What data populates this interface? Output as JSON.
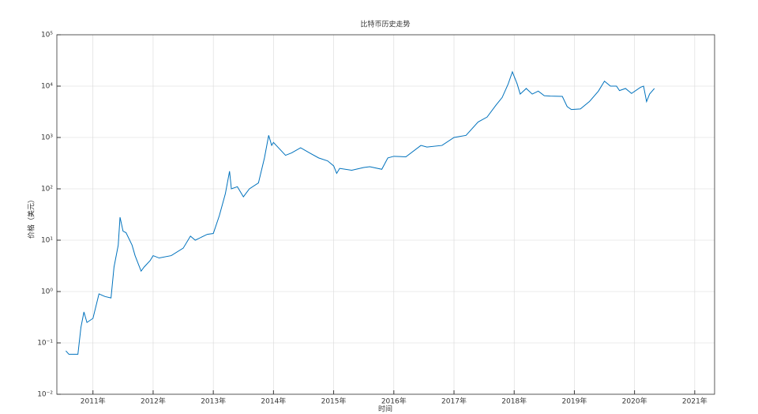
{
  "chart_data": {
    "type": "line",
    "title": "比特币历史走势",
    "x_label": "时间",
    "y_label": "价格（美元）",
    "log_y": true,
    "grid": true,
    "xlim": [
      2010.4,
      2021.33
    ],
    "ylim": [
      0.01,
      100000
    ],
    "xticks": [
      {
        "value": 2011,
        "label": "2011年"
      },
      {
        "value": 2012,
        "label": "2012年"
      },
      {
        "value": 2013,
        "label": "2013年"
      },
      {
        "value": 2014,
        "label": "2014年"
      },
      {
        "value": 2015,
        "label": "2015年"
      },
      {
        "value": 2016,
        "label": "2016年"
      },
      {
        "value": 2017,
        "label": "2017年"
      },
      {
        "value": 2018,
        "label": "2018年"
      },
      {
        "value": 2019,
        "label": "2019年"
      },
      {
        "value": 2020,
        "label": "2020年"
      },
      {
        "value": 2021,
        "label": "2021年"
      }
    ],
    "yticks": [
      {
        "value": 0.01,
        "label": "10⁻²"
      },
      {
        "value": 0.1,
        "label": "10⁻¹"
      },
      {
        "value": 1,
        "label": "10⁰"
      },
      {
        "value": 10,
        "label": "10¹"
      },
      {
        "value": 100,
        "label": "10²"
      },
      {
        "value": 1000,
        "label": "10³"
      },
      {
        "value": 10000,
        "label": "10⁴"
      },
      {
        "value": 100000,
        "label": "10⁵"
      }
    ],
    "x": [
      2010.55,
      2010.6,
      2010.75,
      2010.8,
      2010.85,
      2010.9,
      2011.0,
      2011.1,
      2011.2,
      2011.3,
      2011.35,
      2011.42,
      2011.45,
      2011.5,
      2011.55,
      2011.65,
      2011.7,
      2011.8,
      2011.85,
      2011.95,
      2012.0,
      2012.1,
      2012.3,
      2012.5,
      2012.62,
      2012.7,
      2012.9,
      2013.0,
      2013.1,
      2013.2,
      2013.27,
      2013.3,
      2013.4,
      2013.5,
      2013.6,
      2013.75,
      2013.85,
      2013.92,
      2013.97,
      2014.0,
      2014.1,
      2014.2,
      2014.3,
      2014.45,
      2014.6,
      2014.75,
      2014.9,
      2015.0,
      2015.05,
      2015.1,
      2015.3,
      2015.5,
      2015.6,
      2015.8,
      2015.9,
      2016.0,
      2016.2,
      2016.45,
      2016.55,
      2016.8,
      2017.0,
      2017.2,
      2017.4,
      2017.55,
      2017.7,
      2017.8,
      2017.9,
      2017.97,
      2018.05,
      2018.1,
      2018.2,
      2018.3,
      2018.4,
      2018.5,
      2018.6,
      2018.8,
      2018.88,
      2018.95,
      2019.1,
      2019.25,
      2019.4,
      2019.5,
      2019.6,
      2019.7,
      2019.75,
      2019.85,
      2019.95,
      2020.1,
      2020.15,
      2020.2,
      2020.25,
      2020.33
    ],
    "series": [
      {
        "name": "价格",
        "color": "#0072bd",
        "values": [
          0.07,
          0.06,
          0.06,
          0.2,
          0.4,
          0.25,
          0.3,
          0.9,
          0.8,
          0.75,
          3,
          8,
          28,
          15,
          14,
          8,
          5,
          2.5,
          3,
          4,
          5,
          4.5,
          5,
          7,
          12,
          10,
          13,
          13.5,
          30,
          80,
          220,
          100,
          110,
          70,
          100,
          130,
          400,
          1100,
          700,
          800,
          600,
          450,
          500,
          630,
          500,
          400,
          350,
          280,
          200,
          250,
          230,
          260,
          270,
          240,
          400,
          430,
          420,
          700,
          650,
          700,
          1000,
          1100,
          2000,
          2500,
          4300,
          6000,
          11000,
          19000,
          11000,
          7000,
          9000,
          7000,
          8000,
          6500,
          6400,
          6300,
          4000,
          3500,
          3600,
          5000,
          8000,
          12500,
          10000,
          10000,
          8200,
          9000,
          7200,
          9500,
          10000,
          5000,
          7000,
          9000
        ]
      }
    ]
  }
}
